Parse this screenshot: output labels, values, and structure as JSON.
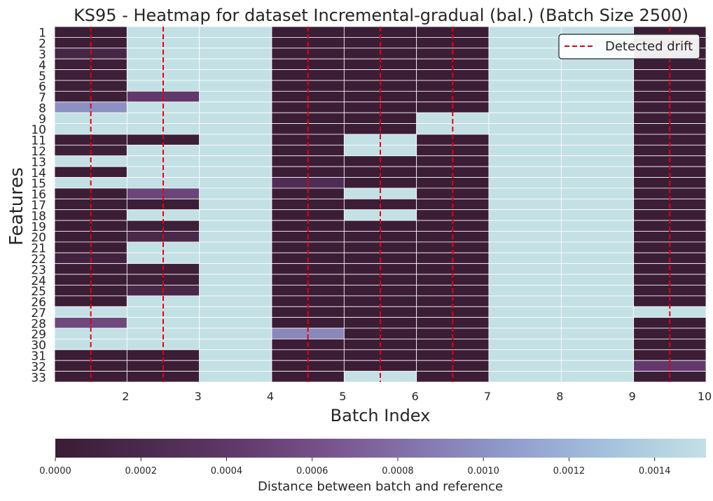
{
  "chart_data": {
    "type": "heatmap",
    "title": "KS95 - Heatmap for dataset Incremental-gradual (bal.) (Batch Size 2500)",
    "xlabel": "Batch Index",
    "ylabel": "Features",
    "x_tick_labels": [
      "2",
      "3",
      "4",
      "5",
      "6",
      "7",
      "8",
      "9",
      "10"
    ],
    "y_tick_labels": [
      "1",
      "2",
      "3",
      "4",
      "5",
      "6",
      "7",
      "8",
      "9",
      "10",
      "11",
      "12",
      "13",
      "14",
      "15",
      "16",
      "17",
      "18",
      "19",
      "20",
      "21",
      "22",
      "23",
      "24",
      "25",
      "26",
      "27",
      "28",
      "29",
      "30",
      "31",
      "32",
      "33"
    ],
    "drift_batches": [
      1.5,
      2.5,
      4.5,
      5.5,
      6.5,
      9.5
    ],
    "legend": {
      "label": "Detected drift",
      "placement": "top-right"
    },
    "colorbar": {
      "label": "Distance between batch and reference",
      "ticks": [
        "0.0000",
        "0.0002",
        "0.0004",
        "0.0006",
        "0.0008",
        "0.0010",
        "0.0012",
        "0.0014"
      ],
      "range": [
        0,
        0.00152
      ],
      "colors": [
        "#3a1c33",
        "#4c2a4f",
        "#623a6c",
        "#7a558e",
        "#8579b0",
        "#92a0ce",
        "#a5c3dd",
        "#c3e0e5"
      ]
    },
    "values": [
      [
        3e-05,
        0.00152,
        0.00152,
        2e-05,
        2e-05,
        2e-05,
        0.00152,
        0.00152,
        2e-05
      ],
      [
        3e-05,
        0.00152,
        0.00152,
        2e-05,
        2e-05,
        2e-05,
        0.00152,
        0.00152,
        2e-05
      ],
      [
        0.00015,
        0.00152,
        0.00152,
        2e-05,
        2e-05,
        2e-05,
        0.00152,
        0.00152,
        2e-05
      ],
      [
        5e-05,
        0.00152,
        0.00152,
        2e-05,
        2e-05,
        2e-05,
        0.00152,
        0.00152,
        2e-05
      ],
      [
        5e-05,
        0.00152,
        0.00152,
        2e-05,
        2e-05,
        2e-05,
        0.00152,
        0.00152,
        2e-05
      ],
      [
        4e-05,
        0.00152,
        0.00152,
        2e-05,
        2e-05,
        2e-05,
        0.00152,
        0.00152,
        2e-05
      ],
      [
        4e-05,
        0.00042,
        0.00152,
        2e-05,
        2e-05,
        2e-05,
        0.00152,
        0.00152,
        2e-05
      ],
      [
        0.001,
        0.00152,
        0.00152,
        2e-05,
        2e-05,
        2e-05,
        0.00152,
        0.00152,
        2e-05
      ],
      [
        0.00152,
        0.00152,
        0.00152,
        2e-05,
        2e-05,
        0.00152,
        0.00152,
        0.00152,
        2e-05
      ],
      [
        0.00152,
        0.00152,
        0.00152,
        2e-05,
        2e-05,
        0.00152,
        0.00152,
        0.00152,
        2e-05
      ],
      [
        3e-05,
        3e-05,
        0.00152,
        2e-05,
        0.00152,
        2e-05,
        0.00152,
        0.00152,
        2e-05
      ],
      [
        5e-05,
        0.00152,
        0.00152,
        2e-05,
        0.00152,
        2e-05,
        0.00152,
        0.00152,
        2e-05
      ],
      [
        0.00152,
        0.00152,
        0.00152,
        2e-05,
        2e-05,
        2e-05,
        0.00152,
        0.00152,
        2e-05
      ],
      [
        3e-05,
        0.00152,
        0.00152,
        2e-05,
        2e-05,
        2e-05,
        0.00152,
        0.00152,
        2e-05
      ],
      [
        0.00152,
        0.00152,
        0.00152,
        0.00025,
        2e-05,
        2e-05,
        0.00152,
        0.00152,
        2e-05
      ],
      [
        2e-05,
        0.00052,
        0.00152,
        2e-05,
        0.00152,
        2e-05,
        0.00152,
        0.00152,
        2e-05
      ],
      [
        2e-05,
        2e-05,
        0.00152,
        2e-05,
        2e-05,
        2e-05,
        0.00152,
        0.00152,
        2e-05
      ],
      [
        2e-05,
        0.00152,
        0.00152,
        2e-05,
        0.00152,
        2e-05,
        0.00152,
        0.00152,
        2e-05
      ],
      [
        2e-05,
        5e-05,
        0.00152,
        2e-05,
        2e-05,
        2e-05,
        0.00152,
        0.00152,
        2e-05
      ],
      [
        2e-05,
        0.00018,
        0.00152,
        2e-05,
        2e-05,
        2e-05,
        0.00152,
        0.00152,
        2e-05
      ],
      [
        2e-05,
        0.00152,
        0.00152,
        2e-05,
        2e-05,
        2e-05,
        0.00152,
        0.00152,
        2e-05
      ],
      [
        0.0001,
        0.00152,
        0.00152,
        2e-05,
        2e-05,
        2e-05,
        0.00152,
        0.00152,
        2e-05
      ],
      [
        2e-05,
        4e-05,
        0.00152,
        2e-05,
        2e-05,
        2e-05,
        0.00152,
        0.00152,
        2e-05
      ],
      [
        2e-05,
        4e-05,
        0.00152,
        2e-05,
        2e-05,
        2e-05,
        0.00152,
        0.00152,
        2e-05
      ],
      [
        2e-05,
        0.00018,
        0.00152,
        2e-05,
        2e-05,
        2e-05,
        0.00152,
        0.00152,
        2e-05
      ],
      [
        2e-05,
        0.00152,
        0.00152,
        2e-05,
        2e-05,
        2e-05,
        0.00152,
        0.00152,
        2e-05
      ],
      [
        0.00152,
        0.00152,
        0.00152,
        2e-05,
        2e-05,
        2e-05,
        0.00152,
        0.00152,
        0.00152
      ],
      [
        0.00055,
        0.00152,
        0.00152,
        2e-05,
        2e-05,
        2e-05,
        0.00152,
        0.00152,
        2e-05
      ],
      [
        0.00152,
        0.00152,
        0.00152,
        0.00095,
        2e-05,
        2e-05,
        0.00152,
        0.00152,
        2e-05
      ],
      [
        0.00152,
        0.00152,
        0.00152,
        2e-05,
        2e-05,
        2e-05,
        0.00152,
        0.00152,
        2e-05
      ],
      [
        2e-05,
        2e-05,
        0.00152,
        2e-05,
        2e-05,
        2e-05,
        0.00152,
        0.00152,
        2e-05
      ],
      [
        2e-05,
        2e-05,
        0.00152,
        2e-05,
        2e-05,
        2e-05,
        0.00152,
        0.00152,
        0.00042
      ],
      [
        2e-05,
        2e-05,
        0.00152,
        2e-05,
        0.00152,
        2e-05,
        0.00152,
        0.00152,
        2e-05
      ]
    ]
  }
}
